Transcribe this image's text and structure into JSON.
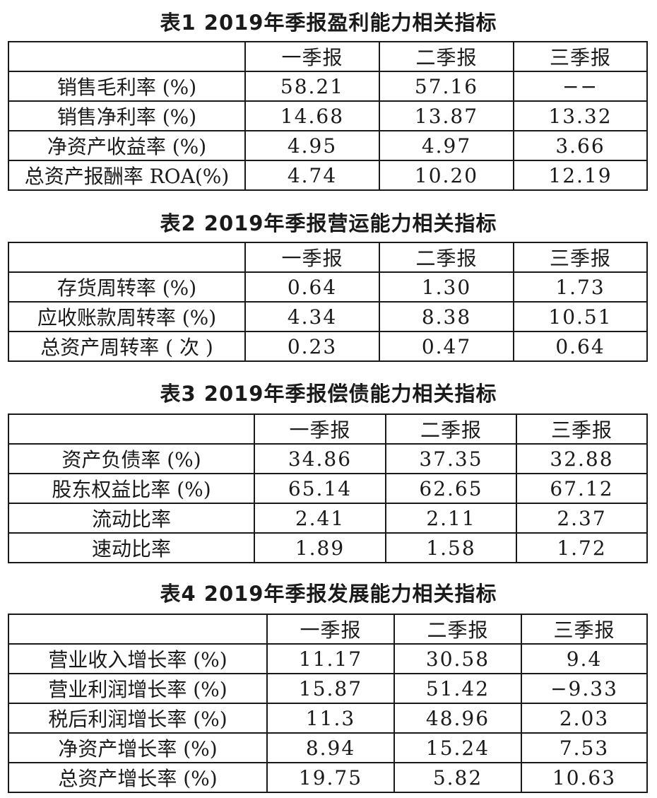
{
  "tables": [
    {
      "title": "表1 2019年季报盈利能力相关指标",
      "headers": [
        "",
        "一季报",
        "二季报",
        "三季报"
      ],
      "rows": [
        [
          "销售毛利率 (%)",
          "58.21",
          "57.16",
          "−−"
        ],
        [
          "销售净利率 (%)",
          "14.68",
          "13.87",
          "13.32"
        ],
        [
          "净资产收益率 (%)",
          "4.95",
          "4.97",
          "3.66"
        ],
        [
          "总资产报酬率 ROA(%)",
          "4.74",
          "10.20",
          "12.19"
        ]
      ]
    },
    {
      "title": "表2 2019年季报营运能力相关指标",
      "headers": [
        "",
        "一季报",
        "二季报",
        "三季报"
      ],
      "rows": [
        [
          "存货周转率 (%)",
          "0.64",
          "1.30",
          "1.73"
        ],
        [
          "应收账款周转率 (%)",
          "4.34",
          "8.38",
          "10.51"
        ],
        [
          "总资产周转率 ( 次 )",
          "0.23",
          "0.47",
          "0.64"
        ]
      ]
    },
    {
      "title": "表3 2019年季报偿债能力相关指标",
      "headers": [
        "",
        "一季报",
        "二季报",
        "三季报"
      ],
      "rows": [
        [
          "资产负债率 (%)",
          "34.86",
          "37.35",
          "32.88"
        ],
        [
          "股东权益比率 (%)",
          "65.14",
          "62.65",
          "67.12"
        ],
        [
          "流动比率",
          "2.41",
          "2.11",
          "2.37"
        ],
        [
          "速动比率",
          "1.89",
          "1.58",
          "1.72"
        ]
      ]
    },
    {
      "title": "表4 2019年季报发展能力相关指标",
      "headers": [
        "",
        "一季报",
        "二季报",
        "三季报"
      ],
      "rows": [
        [
          "营业收入增长率 (%)",
          "11.17",
          "30.58",
          "9.4"
        ],
        [
          "营业利润增长率 (%)",
          "15.87",
          "51.42",
          "−9.33"
        ],
        [
          "税后利润增长率 (%)",
          "11.3",
          "48.96",
          "2.03"
        ],
        [
          "净资产增长率 (%)",
          "8.94",
          "15.24",
          "7.53"
        ],
        [
          "总资产增长率 (%)",
          "19.75",
          "5.82",
          "10.63"
        ]
      ]
    }
  ]
}
